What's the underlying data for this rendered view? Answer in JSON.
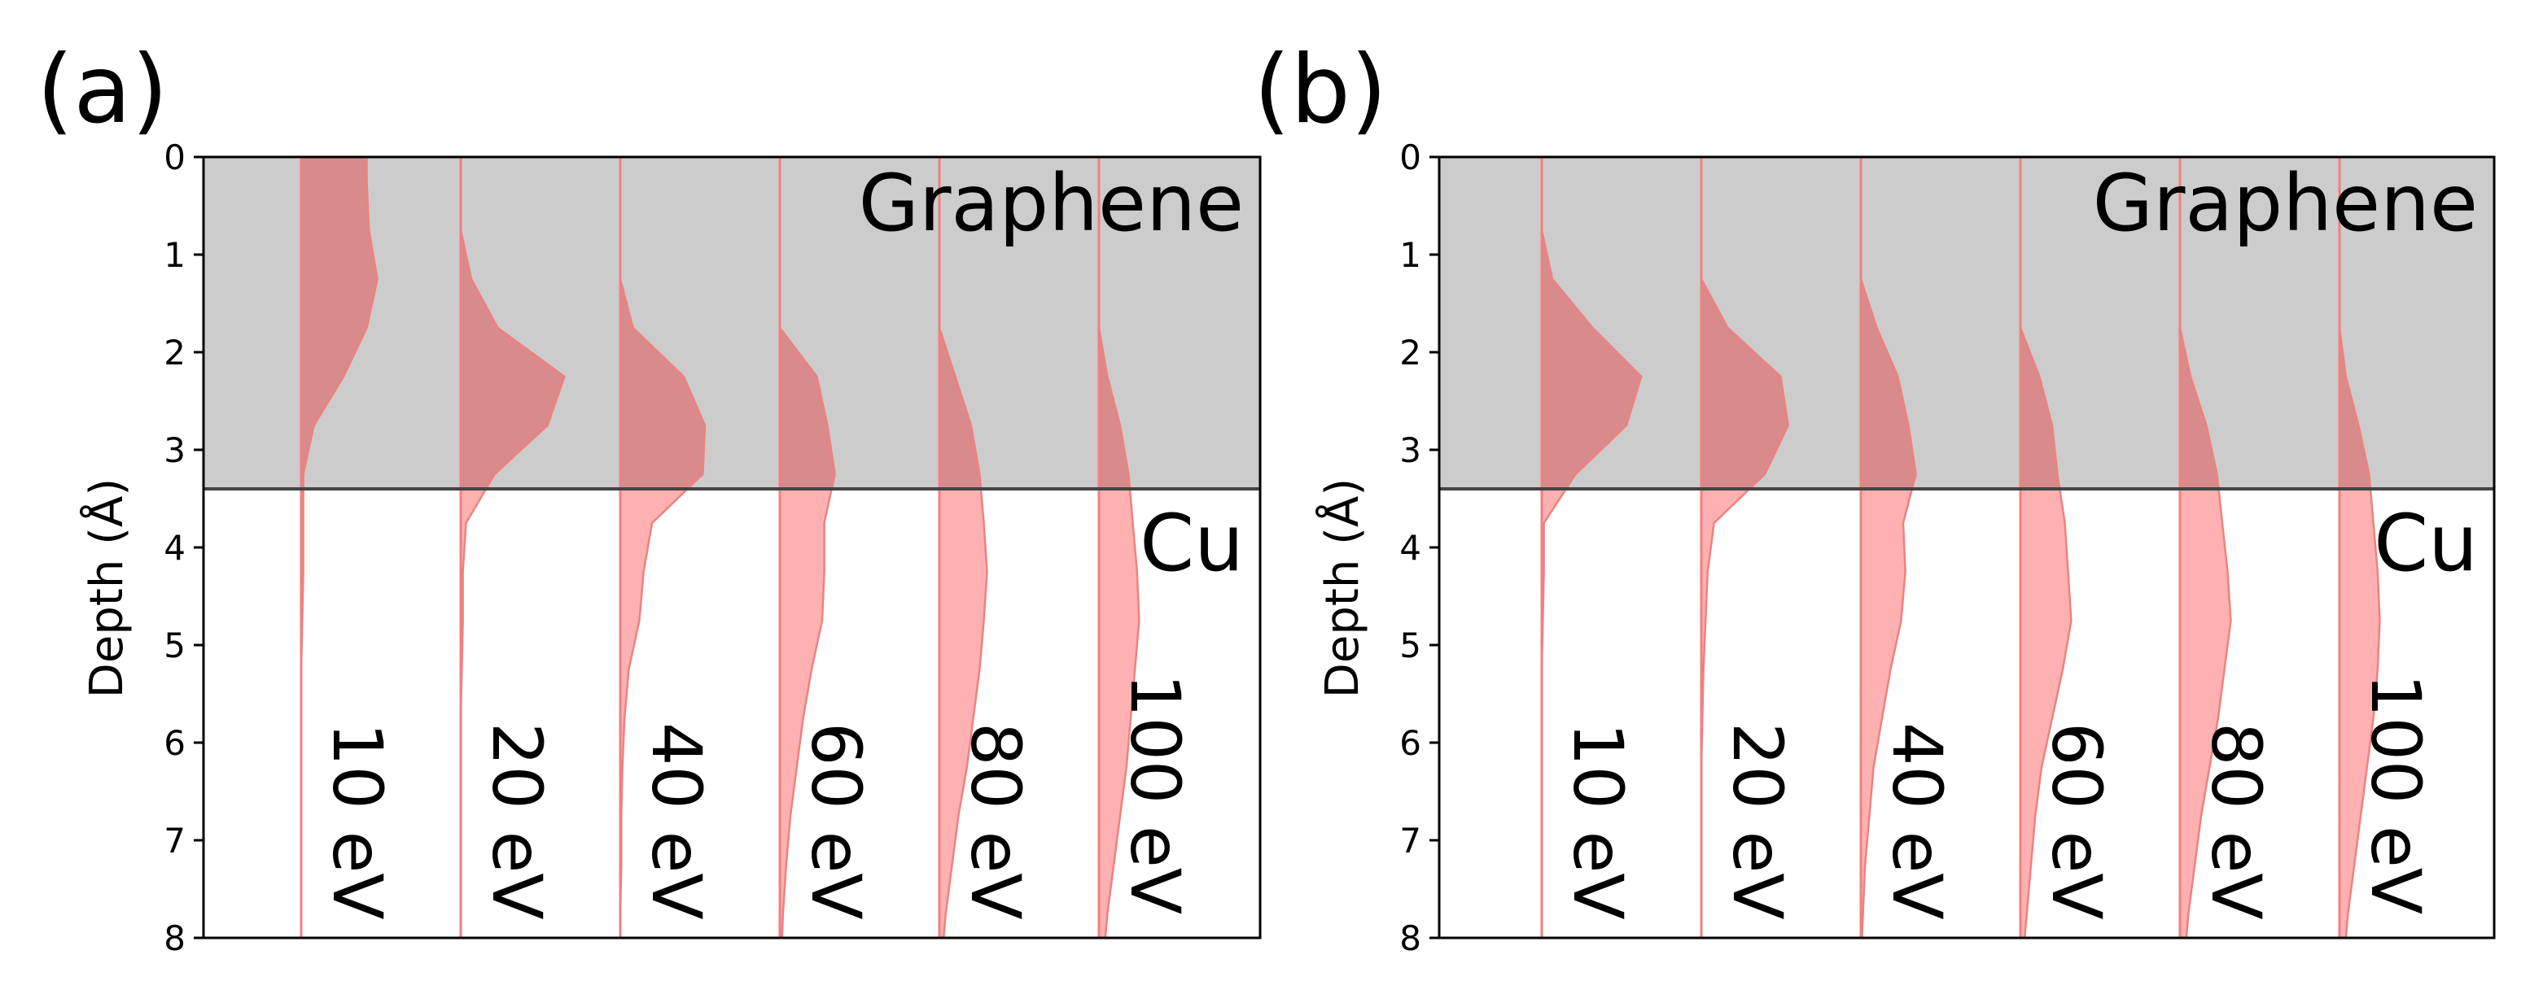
{
  "chart_data": [
    {
      "panel_label": "(a)",
      "type": "area",
      "ylabel": "Depth (Å)",
      "ylim": [
        0,
        8
      ],
      "yticks": [
        "0",
        "1",
        "2",
        "3",
        "4",
        "5",
        "6",
        "7",
        "8"
      ],
      "y_inverted": true,
      "interface_depth": 3.4,
      "regions": {
        "top": "Graphene",
        "bottom": "Cu"
      },
      "depth": [
        0,
        0.25,
        0.75,
        1.25,
        1.75,
        2.25,
        2.75,
        3.25,
        3.75,
        4.25,
        4.75,
        5.25,
        5.75,
        6.25,
        6.75,
        7.25,
        7.75,
        8
      ],
      "series": [
        {
          "name": "10 eV",
          "values": [
            0.62,
            0.62,
            0.64,
            0.72,
            0.62,
            0.4,
            0.12,
            0.02,
            0.02,
            0.02,
            0.01,
            0,
            0,
            0,
            0,
            0,
            0,
            0
          ]
        },
        {
          "name": "20 eV",
          "values": [
            0,
            0,
            0,
            0.1,
            0.35,
            0.98,
            0.82,
            0.32,
            0.05,
            0.02,
            0.02,
            0.01,
            0,
            0,
            0,
            0,
            0,
            0
          ]
        },
        {
          "name": "40 eV",
          "values": [
            0,
            0,
            0,
            0,
            0.12,
            0.6,
            0.8,
            0.78,
            0.3,
            0.22,
            0.18,
            0.08,
            0.04,
            0.02,
            0.01,
            0.01,
            0,
            0
          ]
        },
        {
          "name": "60 eV",
          "values": [
            0,
            0,
            0,
            0,
            0,
            0.35,
            0.45,
            0.52,
            0.42,
            0.42,
            0.4,
            0.3,
            0.22,
            0.16,
            0.1,
            0.06,
            0.03,
            0.02
          ]
        },
        {
          "name": "80 eV",
          "values": [
            0,
            0,
            0,
            0,
            0,
            0.15,
            0.3,
            0.38,
            0.42,
            0.45,
            0.42,
            0.38,
            0.32,
            0.26,
            0.18,
            0.12,
            0.06,
            0.04
          ]
        },
        {
          "name": "100 eV",
          "values": [
            0,
            0,
            0,
            0,
            0,
            0.08,
            0.2,
            0.28,
            0.32,
            0.36,
            0.38,
            0.34,
            0.3,
            0.26,
            0.2,
            0.14,
            0.08,
            0.06
          ]
        }
      ]
    },
    {
      "panel_label": "(b)",
      "type": "area",
      "ylabel": "Depth (Å)",
      "ylim": [
        0,
        8
      ],
      "yticks": [
        "0",
        "1",
        "2",
        "3",
        "4",
        "5",
        "6",
        "7",
        "8"
      ],
      "y_inverted": true,
      "interface_depth": 3.4,
      "regions": {
        "top": "Graphene",
        "bottom": "Cu"
      },
      "depth": [
        0,
        0.25,
        0.75,
        1.25,
        1.75,
        2.25,
        2.75,
        3.25,
        3.75,
        4.25,
        4.75,
        5.25,
        5.75,
        6.25,
        6.75,
        7.25,
        7.75,
        8
      ],
      "series": [
        {
          "name": "10 eV",
          "values": [
            0,
            0,
            0,
            0.1,
            0.48,
            0.94,
            0.8,
            0.32,
            0.02,
            0.02,
            0.01,
            0,
            0,
            0,
            0,
            0,
            0,
            0
          ]
        },
        {
          "name": "20 eV",
          "values": [
            0,
            0,
            0,
            0,
            0.25,
            0.75,
            0.82,
            0.6,
            0.12,
            0.06,
            0.04,
            0.02,
            0.01,
            0,
            0,
            0,
            0,
            0
          ]
        },
        {
          "name": "40 eV",
          "values": [
            0,
            0,
            0,
            0,
            0.15,
            0.35,
            0.45,
            0.52,
            0.4,
            0.42,
            0.38,
            0.28,
            0.2,
            0.12,
            0.08,
            0.04,
            0.02,
            0.01
          ]
        },
        {
          "name": "60 eV",
          "values": [
            0,
            0,
            0,
            0,
            0,
            0.18,
            0.3,
            0.35,
            0.42,
            0.45,
            0.48,
            0.4,
            0.3,
            0.2,
            0.14,
            0.1,
            0.06,
            0.04
          ]
        },
        {
          "name": "80 eV",
          "values": [
            0,
            0,
            0,
            0,
            0,
            0.1,
            0.25,
            0.35,
            0.4,
            0.45,
            0.48,
            0.42,
            0.36,
            0.28,
            0.2,
            0.14,
            0.08,
            0.06
          ]
        },
        {
          "name": "100 eV",
          "values": [
            0,
            0,
            0,
            0,
            0,
            0.06,
            0.18,
            0.28,
            0.32,
            0.36,
            0.38,
            0.36,
            0.32,
            0.26,
            0.2,
            0.14,
            0.08,
            0.06
          ]
        }
      ]
    }
  ],
  "colors": {
    "graphene_bg": "#cccccc",
    "fill_graphene": "#d98a8a",
    "fill_cu": "#ffb1b1",
    "stroke": "#f08080",
    "interface_line": "#444444"
  }
}
